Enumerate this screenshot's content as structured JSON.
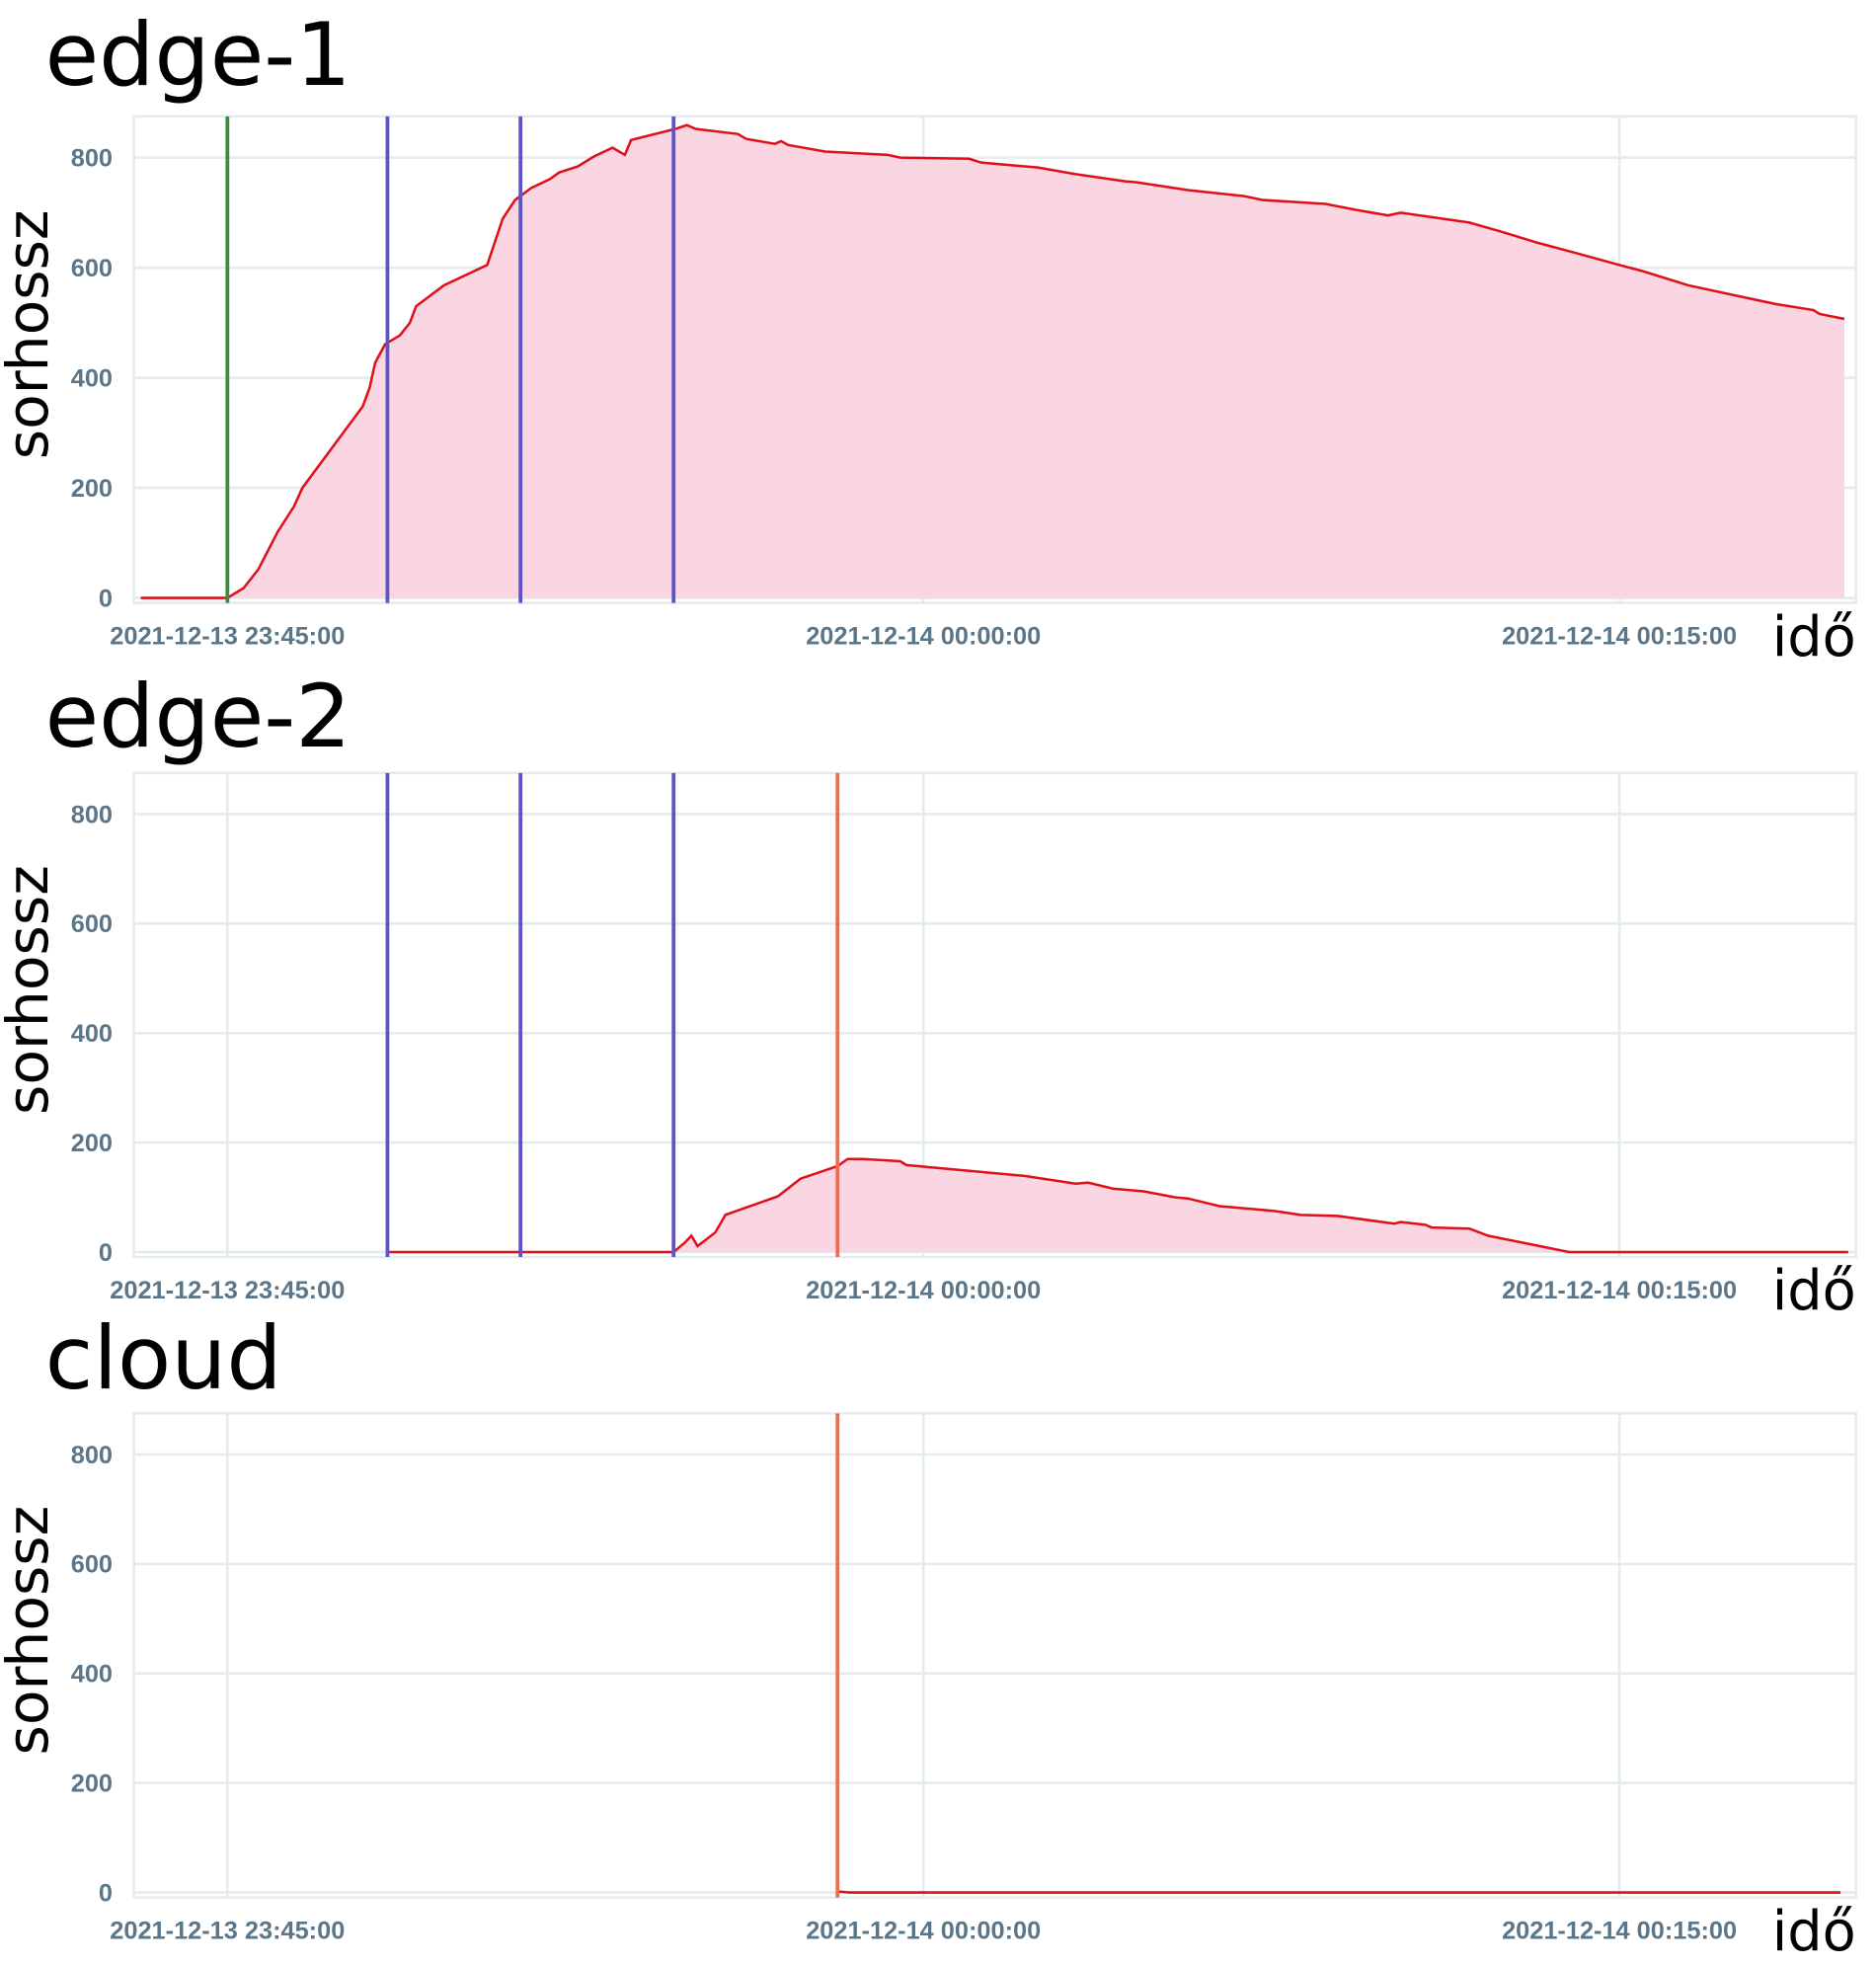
{
  "chart_data": [
    {
      "type": "area",
      "title": "edge-1",
      "ylabel": "sorhossz",
      "xlabel": "idő",
      "color": "#e0101b",
      "fill": "#fad6e2",
      "grid": true,
      "xlim": [
        "2021-12-13 23:42:59",
        "2021-12-14 00:20:06"
      ],
      "xticks": [
        "2021-12-13 23:45:00",
        "2021-12-14 00:00:00",
        "2021-12-14 00:15:00"
      ],
      "ylim": [
        -9,
        875
      ],
      "yticks": [
        0,
        200,
        400,
        600,
        800
      ],
      "markers": [
        {
          "x": "2021-12-13 23:45:00",
          "color": "#3d8b3d"
        },
        {
          "x": "2021-12-13 23:48:27",
          "color": "#5b55c9"
        },
        {
          "x": "2021-12-13 23:51:19",
          "color": "#5b55c9"
        },
        {
          "x": "2021-12-13 23:54:37",
          "color": "#5b55c9"
        }
      ],
      "x": [
        "2021-12-13 23:43:08",
        "2021-12-13 23:45:00",
        "2021-12-13 23:45:21",
        "2021-12-13 23:45:40",
        "2021-12-13 23:46:05",
        "2021-12-13 23:46:26",
        "2021-12-13 23:46:37",
        "2021-12-13 23:47:55",
        "2021-12-13 23:48:04",
        "2021-12-13 23:48:11",
        "2021-12-13 23:48:24",
        "2021-12-13 23:48:43",
        "2021-12-13 23:48:56",
        "2021-12-13 23:49:04",
        "2021-12-13 23:49:40",
        "2021-12-13 23:50:36",
        "2021-12-13 23:50:56",
        "2021-12-13 23:51:12",
        "2021-12-13 23:51:33",
        "2021-12-13 23:51:57",
        "2021-12-13 23:52:09",
        "2021-12-13 23:52:33",
        "2021-12-13 23:52:54",
        "2021-12-13 23:53:18",
        "2021-12-13 23:53:34",
        "2021-12-13 23:53:42",
        "2021-12-13 23:54:39",
        "2021-12-13 23:54:54",
        "2021-12-13 23:55:06",
        "2021-12-13 23:56:00",
        "2021-12-13 23:56:11",
        "2021-12-13 23:56:48",
        "2021-12-13 23:56:56",
        "2021-12-13 23:57:05",
        "2021-12-13 23:57:53",
        "2021-12-13 23:59:14",
        "2021-12-13 23:59:30",
        "2021-12-14 00:00:59",
        "2021-12-14 00:01:15",
        "2021-12-14 00:02:28",
        "2021-12-14 00:03:17",
        "2021-12-14 00:04:21",
        "2021-12-14 00:04:37",
        "2021-12-14 00:05:42",
        "2021-12-14 00:06:55",
        "2021-12-14 00:07:19",
        "2021-12-14 00:08:40",
        "2021-12-14 00:09:20",
        "2021-12-14 00:10:01",
        "2021-12-14 00:10:17",
        "2021-12-14 00:11:46",
        "2021-12-14 00:12:26",
        "2021-12-14 00:13:15",
        "2021-12-14 00:14:03",
        "2021-12-14 00:15:00",
        "2021-12-14 00:15:32",
        "2021-12-14 00:16:29",
        "2021-12-14 00:18:22",
        "2021-12-14 00:19:11",
        "2021-12-14 00:19:19",
        "2021-12-14 00:19:51"
      ],
      "values": [
        0,
        0,
        18,
        52,
        120,
        166,
        200,
        348,
        382,
        427,
        461,
        477,
        500,
        530,
        568,
        605,
        689,
        723,
        745,
        761,
        773,
        784,
        802,
        818,
        805,
        832,
        852,
        859,
        852,
        843,
        834,
        825,
        830,
        823,
        811,
        805,
        800,
        798,
        791,
        782,
        770,
        757,
        755,
        741,
        730,
        723,
        716,
        705,
        695,
        700,
        682,
        666,
        645,
        627,
        605,
        593,
        568,
        534,
        523,
        516,
        507
      ]
    },
    {
      "type": "area",
      "title": "edge-2",
      "ylabel": "sorhossz",
      "xlabel": "idő",
      "color": "#e0101b",
      "fill": "#fad6e2",
      "grid": true,
      "xlim": [
        "2021-12-13 23:42:59",
        "2021-12-14 00:20:06"
      ],
      "xticks": [
        "2021-12-13 23:45:00",
        "2021-12-14 00:00:00",
        "2021-12-14 00:15:00"
      ],
      "ylim": [
        -9,
        875
      ],
      "yticks": [
        0,
        200,
        400,
        600,
        800
      ],
      "markers": [
        {
          "x": "2021-12-13 23:48:27",
          "color": "#5b55c9"
        },
        {
          "x": "2021-12-13 23:51:19",
          "color": "#5b55c9"
        },
        {
          "x": "2021-12-13 23:54:37",
          "color": "#5b55c9"
        },
        {
          "x": "2021-12-13 23:58:09",
          "color": "#f26a4f"
        }
      ],
      "x": [
        "2021-12-13 23:48:27",
        "2021-12-13 23:54:37",
        "2021-12-13 23:54:52",
        "2021-12-13 23:55:00",
        "2021-12-13 23:55:08",
        "2021-12-13 23:55:31",
        "2021-12-13 23:55:44",
        "2021-12-13 23:56:52",
        "2021-12-13 23:57:21",
        "2021-12-13 23:58:09",
        "2021-12-13 23:58:22",
        "2021-12-13 23:58:42",
        "2021-12-13 23:59:30",
        "2021-12-13 23:59:38",
        "2021-12-14 00:02:12",
        "2021-12-14 00:03:17",
        "2021-12-14 00:03:33",
        "2021-12-14 00:04:05",
        "2021-12-14 00:04:45",
        "2021-12-14 00:05:26",
        "2021-12-14 00:05:42",
        "2021-12-14 00:06:23",
        "2021-12-14 00:07:35",
        "2021-12-14 00:08:08",
        "2021-12-14 00:08:56",
        "2021-12-14 00:10:09",
        "2021-12-14 00:10:17",
        "2021-12-14 00:10:49",
        "2021-12-14 00:10:57",
        "2021-12-14 00:11:46",
        "2021-12-14 00:12:10",
        "2021-12-14 00:12:59",
        "2021-12-14 00:13:55",
        "2021-12-14 00:19:56"
      ],
      "values": [
        0,
        0,
        18,
        30,
        11,
        36,
        68,
        102,
        134,
        157,
        170,
        170,
        166,
        159,
        139,
        125,
        127,
        116,
        111,
        100,
        98,
        84,
        75,
        68,
        66,
        52,
        55,
        50,
        45,
        43,
        30,
        16,
        0,
        0
      ]
    },
    {
      "type": "area",
      "title": "cloud",
      "ylabel": "sorhossz",
      "xlabel": "idő",
      "color": "#e0101b",
      "fill": "#fad6e2",
      "grid": true,
      "xlim": [
        "2021-12-13 23:42:59",
        "2021-12-14 00:20:06"
      ],
      "xticks": [
        "2021-12-13 23:45:00",
        "2021-12-14 00:00:00",
        "2021-12-14 00:15:00"
      ],
      "ylim": [
        -9,
        875
      ],
      "yticks": [
        0,
        200,
        400,
        600,
        800
      ],
      "markers": [
        {
          "x": "2021-12-13 23:58:09",
          "color": "#f26a4f"
        }
      ],
      "x": [
        "2021-12-13 23:58:09",
        "2021-12-13 23:58:25",
        "2021-12-14 00:19:46"
      ],
      "values": [
        2,
        0,
        0
      ]
    }
  ]
}
